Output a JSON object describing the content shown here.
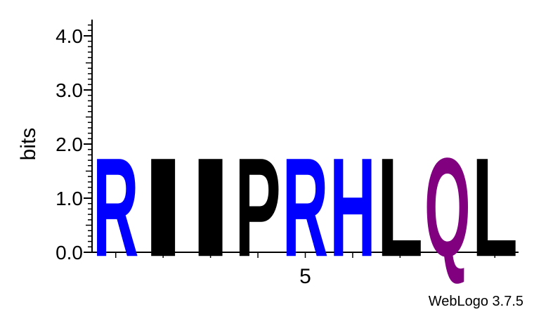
{
  "chart_data": {
    "type": "sequence-logo",
    "ylabel": "bits",
    "ylim": [
      0,
      4.3
    ],
    "y_ticks": [
      "0.0",
      "1.0",
      "2.0",
      "3.0",
      "4.0"
    ],
    "y_tick_values": [
      0,
      1,
      2,
      3,
      4
    ],
    "x_tick_labels": [
      {
        "position": 5,
        "label": "5"
      }
    ],
    "positions": [
      {
        "index": 1,
        "letter": "R",
        "bits": 1.78,
        "color": "#0000ff"
      },
      {
        "index": 2,
        "letter": "I",
        "bits": 1.78,
        "color": "#000000"
      },
      {
        "index": 3,
        "letter": "I",
        "bits": 1.78,
        "color": "#000000"
      },
      {
        "index": 4,
        "letter": "P",
        "bits": 1.78,
        "color": "#000000"
      },
      {
        "index": 5,
        "letter": "R",
        "bits": 1.78,
        "color": "#0000ff"
      },
      {
        "index": 6,
        "letter": "H",
        "bits": 1.78,
        "color": "#0000ff"
      },
      {
        "index": 7,
        "letter": "L",
        "bits": 1.78,
        "color": "#000000"
      },
      {
        "index": 8,
        "letter": "Q",
        "bits": 1.78,
        "color": "#800080"
      },
      {
        "index": 9,
        "letter": "L",
        "bits": 1.78,
        "color": "#000000"
      }
    ]
  },
  "footer": {
    "credit": "WebLogo 3.7.5"
  }
}
